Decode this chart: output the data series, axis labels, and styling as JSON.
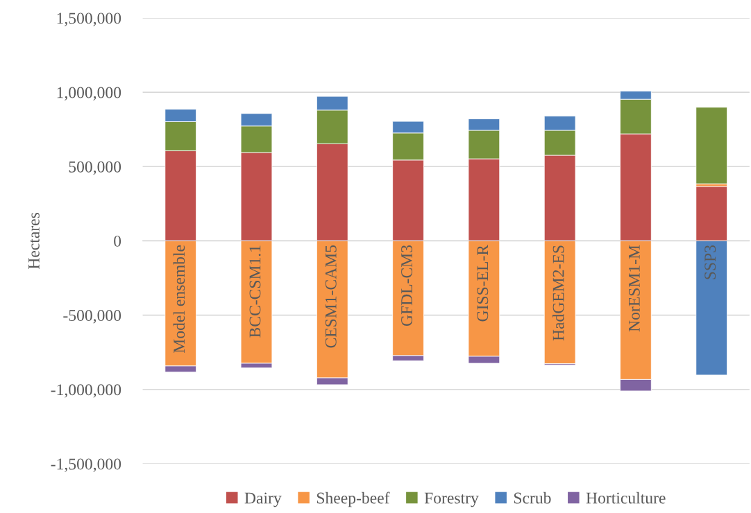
{
  "chart_data": {
    "type": "bar",
    "stacked": true,
    "ylabel": "Hectares",
    "categories": [
      "Model ensemble",
      "BCC-CSM1.1",
      "CESM1-CAM5",
      "GFDL-CM3",
      "GISS-EL-R",
      "HadGEM2-ES",
      "NorESM1-M",
      "SSP3"
    ],
    "series": [
      {
        "name": "Dairy",
        "color": "#c0504d",
        "values": [
          606000,
          594000,
          653000,
          544000,
          552000,
          576000,
          720000,
          366000
        ]
      },
      {
        "name": "Sheep-beef",
        "color": "#f79646",
        "values": [
          -842000,
          -824000,
          -922000,
          -772000,
          -777000,
          -827000,
          -933000,
          18000
        ]
      },
      {
        "name": "Forestry",
        "color": "#77933c",
        "values": [
          196000,
          179000,
          227000,
          182000,
          192000,
          168000,
          233000,
          515000
        ]
      },
      {
        "name": "Scrub",
        "color": "#4f81bd",
        "values": [
          84000,
          84000,
          92000,
          78000,
          77000,
          96000,
          55000,
          -903000
        ]
      },
      {
        "name": "Horticulture",
        "color": "#8064a2",
        "values": [
          -41000,
          -31000,
          -46000,
          -35000,
          -47000,
          -9000,
          -77000,
          null
        ]
      }
    ],
    "ylim": [
      -1500000,
      1500000
    ],
    "yticks": [
      {
        "value": -1500000,
        "label": "-1,500,000"
      },
      {
        "value": -1000000,
        "label": "-1,000,000"
      },
      {
        "value": -500000,
        "label": "-500,000"
      },
      {
        "value": 0,
        "label": "0"
      },
      {
        "value": 500000,
        "label": "500,000"
      },
      {
        "value": 1000000,
        "label": "1,000,000"
      },
      {
        "value": 1500000,
        "label": "1,500,000"
      }
    ],
    "grid": "y",
    "legend": "bottom"
  }
}
